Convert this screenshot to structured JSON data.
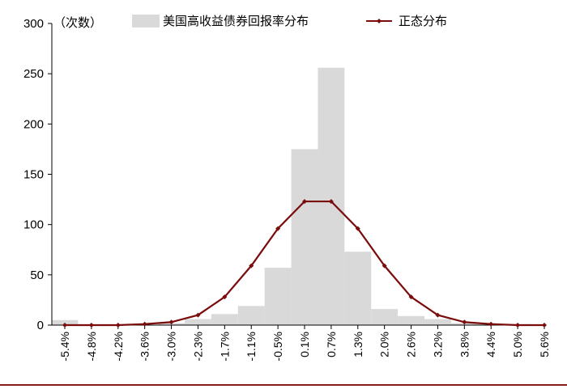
{
  "chart_data": {
    "type": "bar",
    "title": "",
    "xlabel": "",
    "ylabel": "（次数）",
    "ylim": [
      0,
      300
    ],
    "yticks": [
      "0",
      "50",
      "100",
      "150",
      "200",
      "250",
      "300"
    ],
    "xtick_labels": [
      "-5.4%",
      "-4.8%",
      "-4.2%",
      "-3.6%",
      "-3.0%",
      "-2.3%",
      "-1.7%",
      "-1.1%",
      "-0.5%",
      "0.1%",
      "0.7%",
      "1.3%",
      "2.0%",
      "2.6%",
      "3.2%",
      "3.8%",
      "4.4%",
      "5.0%",
      "5.6%"
    ],
    "grid": false,
    "legend_position": "top",
    "series": [
      {
        "name": "美国高收益债券回报率分布",
        "kind": "histogram",
        "color": "#d9d9d9",
        "values": [
          5,
          0,
          0,
          0,
          2,
          6,
          11,
          19,
          57,
          175,
          256,
          73,
          16,
          9,
          6,
          2,
          1,
          1
        ]
      },
      {
        "name": "正态分布",
        "kind": "line",
        "color": "#7a0c0c",
        "values": [
          0,
          0,
          0,
          1,
          3,
          10,
          28,
          59,
          96,
          123,
          123,
          96,
          59,
          28,
          10,
          3,
          1,
          0,
          0
        ]
      }
    ]
  },
  "colors": {
    "bar": "#d9d9d9",
    "line": "#7a0c0c",
    "frame": "#000000",
    "bottom_rule": "#8b1a1a"
  }
}
